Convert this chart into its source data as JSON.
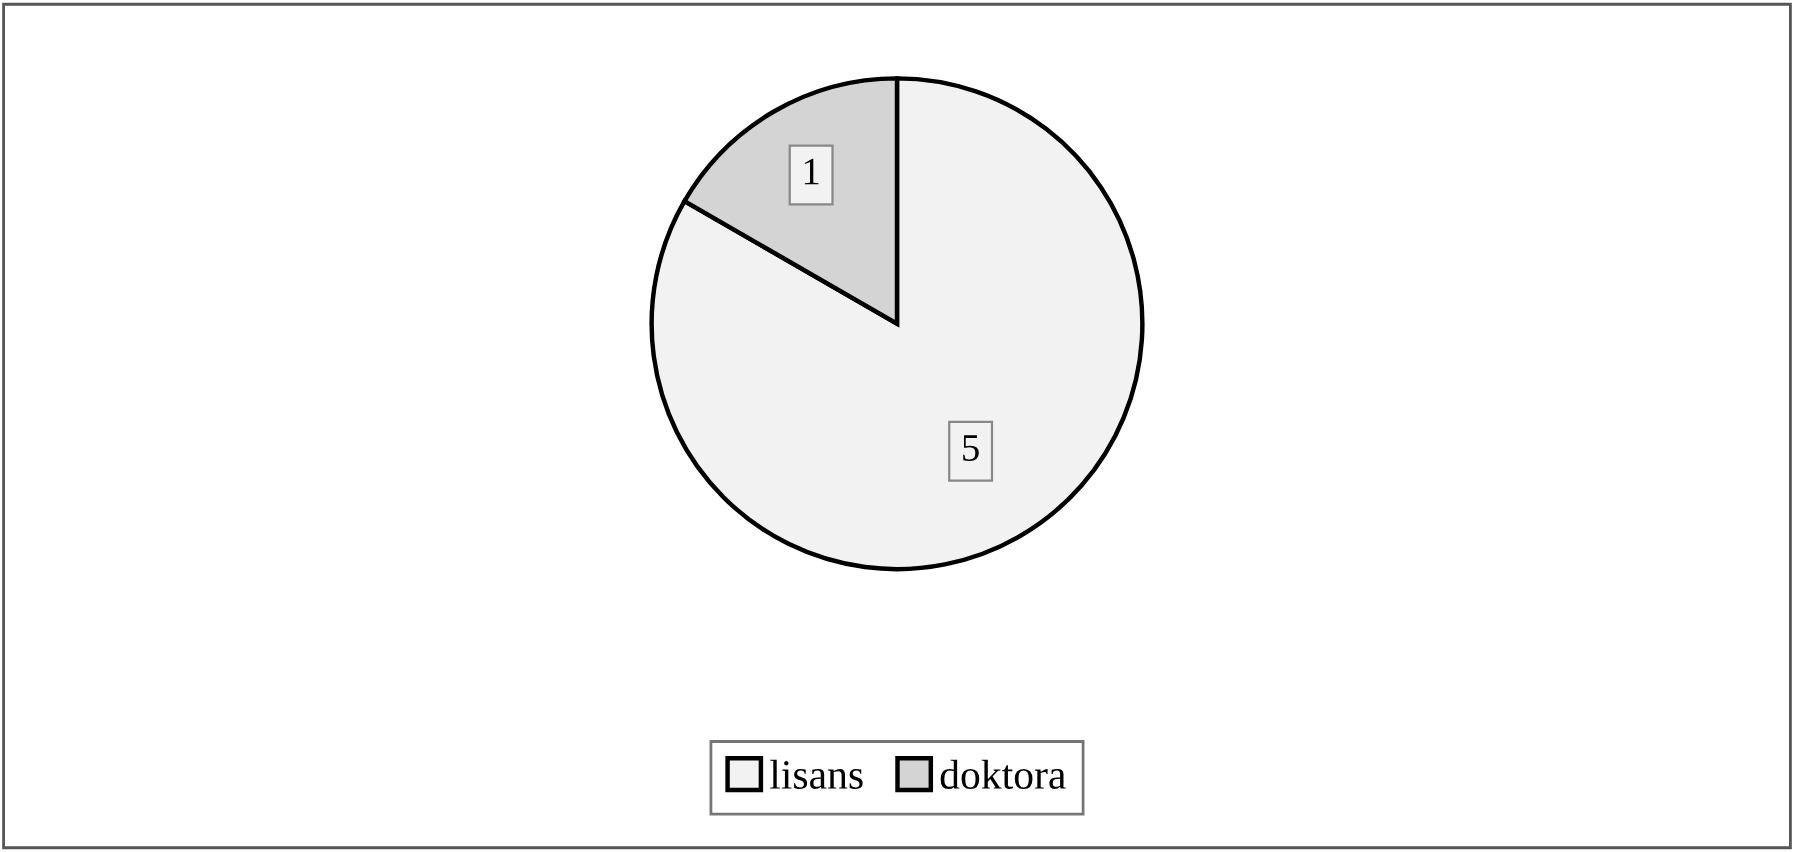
{
  "chart_data": {
    "type": "pie",
    "categories": [
      "lisans",
      "doktora"
    ],
    "values": [
      5,
      1
    ],
    "colors": [
      "#f2f2f2",
      "#d4d4d4"
    ],
    "data_labels": true,
    "legend": "bottom"
  }
}
